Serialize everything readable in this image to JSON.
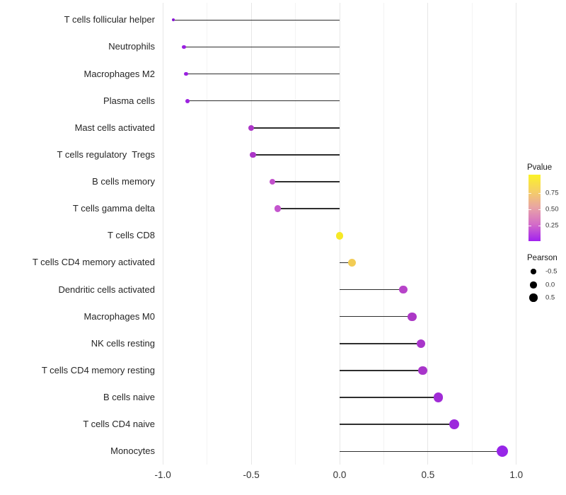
{
  "chart_data": {
    "type": "lollipop",
    "orientation": "horizontal",
    "title": "",
    "xlabel": "",
    "ylabel": "",
    "x_axis": {
      "range": [
        -1.03,
        1.03
      ],
      "major_ticks": [
        -1.0,
        -0.5,
        0.0,
        0.5,
        1.0
      ],
      "tick_labels": [
        "-1.0",
        "-0.5",
        "0.0",
        "0.5",
        "1.0"
      ],
      "minor_ticks": [
        -0.75,
        -0.25,
        0.25,
        0.75
      ],
      "grid": true
    },
    "baseline": 0.0,
    "series": [
      {
        "label": "T cells follicular helper",
        "pearson": -0.94,
        "pvalue": 0.005,
        "color": "#8a15d6",
        "radius": 2.0
      },
      {
        "label": "Neutrophils",
        "pearson": -0.88,
        "pvalue": 0.01,
        "color": "#9a20e0",
        "radius": 2.7
      },
      {
        "label": "Macrophages M2",
        "pearson": -0.87,
        "pvalue": 0.01,
        "color": "#9a20e0",
        "radius": 2.9
      },
      {
        "label": "Plasma cells",
        "pearson": -0.86,
        "pvalue": 0.012,
        "color": "#9c22e0",
        "radius": 2.9
      },
      {
        "label": "Mast cells activated",
        "pearson": -0.5,
        "pvalue": 0.08,
        "color": "#ac35c8",
        "radius": 4.3
      },
      {
        "label": "T cells regulatory  Tregs",
        "pearson": -0.49,
        "pvalue": 0.08,
        "color": "#ac35c8",
        "radius": 4.3
      },
      {
        "label": "B cells memory",
        "pearson": -0.38,
        "pvalue": 0.18,
        "color": "#c250cc",
        "radius": 4.4
      },
      {
        "label": "T cells gamma delta",
        "pearson": -0.35,
        "pvalue": 0.2,
        "color": "#c455ce",
        "radius": 4.7
      },
      {
        "label": "T cells CD8",
        "pearson": 0.0,
        "pvalue": 0.93,
        "color": "#f6e926",
        "radius": 5.4
      },
      {
        "label": "T cells CD4 memory activated",
        "pearson": 0.07,
        "pvalue": 0.72,
        "color": "#f2cc55",
        "radius": 5.9
      },
      {
        "label": "Dendritic cells activated",
        "pearson": 0.36,
        "pvalue": 0.15,
        "color": "#b743c9",
        "radius": 5.6
      },
      {
        "label": "Macrophages M0",
        "pearson": 0.41,
        "pvalue": 0.1,
        "color": "#ac38c6",
        "radius": 6.1
      },
      {
        "label": "NK cells resting",
        "pearson": 0.46,
        "pvalue": 0.09,
        "color": "#a835ca",
        "radius": 6.3
      },
      {
        "label": "T cells CD4 memory resting",
        "pearson": 0.47,
        "pvalue": 0.09,
        "color": "#a835ca",
        "radius": 6.3
      },
      {
        "label": "B cells naive",
        "pearson": 0.56,
        "pvalue": 0.04,
        "color": "#a02bd6",
        "radius": 6.6
      },
      {
        "label": "T cells CD4 naive",
        "pearson": 0.65,
        "pvalue": 0.03,
        "color": "#9c28dc",
        "radius": 7.1
      },
      {
        "label": "Monocytes",
        "pearson": 0.92,
        "pvalue": 0.004,
        "color": "#9726e8",
        "radius": 8.2
      }
    ],
    "legends": {
      "pvalue": {
        "title": "Pvalue",
        "position": "right",
        "tick_labels": [
          "0.75",
          "0.50",
          "0.25"
        ],
        "gradient_top_to_bottom": [
          "#fbf227",
          "#f5cf66",
          "#e8a3a6",
          "#d36bc8",
          "#a121ef"
        ]
      },
      "pearson": {
        "title": "Pearson",
        "position": "right",
        "items": [
          {
            "label": "-0.5",
            "radius": 3.7
          },
          {
            "label": "0.0",
            "radius": 4.7
          },
          {
            "label": "0.5",
            "radius": 5.7
          }
        ]
      }
    },
    "colors": {
      "stick": "#2e2e2e",
      "grid_major": "#e7e7e7",
      "grid_minor": "#f3f3f3",
      "axis_text": "#333333",
      "category_text": "#262626",
      "background": "#ffffff"
    }
  }
}
